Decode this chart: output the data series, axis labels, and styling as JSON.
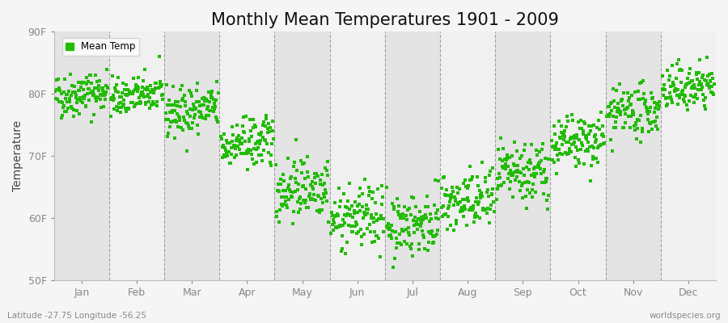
{
  "title": "Monthly Mean Temperatures 1901 - 2009",
  "ylabel": "Temperature",
  "xlabel_labels": [
    "Jan",
    "Feb",
    "Mar",
    "Apr",
    "May",
    "Jun",
    "Jul",
    "Aug",
    "Sep",
    "Oct",
    "Nov",
    "Dec"
  ],
  "ylim": [
    50,
    90
  ],
  "yticks": [
    50,
    60,
    70,
    80,
    90
  ],
  "ytick_labels": [
    "50F",
    "60F",
    "70F",
    "80F",
    "90F"
  ],
  "dot_color": "#22bb00",
  "background_color": "#f5f5f5",
  "plot_bg_color": "#f0f0f0",
  "alt_band_color": "#e4e4e4",
  "title_fontsize": 15,
  "legend_label": "Mean Temp",
  "footer_left": "Latitude -27.75 Longitude -56.25",
  "footer_right": "worldspecies.org",
  "n_years": 109,
  "start_year": 1901,
  "monthly_means": [
    79.5,
    79.2,
    76.8,
    71.5,
    64.5,
    59.5,
    58.5,
    62.0,
    66.5,
    71.5,
    76.5,
    80.5
  ],
  "monthly_stds": [
    1.8,
    1.5,
    2.0,
    2.0,
    2.5,
    2.5,
    2.5,
    2.5,
    2.5,
    2.2,
    2.0,
    1.8
  ],
  "trend_per_year": 0.01,
  "seed": 42
}
